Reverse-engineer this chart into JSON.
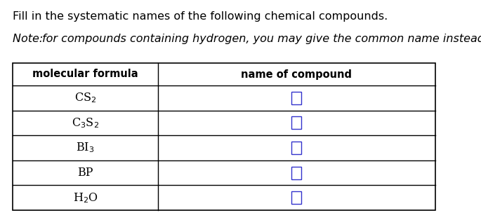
{
  "title_text": "Fill in the systematic names of the following chemical compounds.",
  "note_text_italic": "Note: ",
  "note_text_normal": "for compounds containing hydrogen, you may give the common name instead.",
  "col1_header": "molecular formula",
  "col2_header": "name of compound",
  "formulas": [
    "CS$_2$",
    "C$_3$S$_2$",
    "BI$_3$",
    "BP",
    "H$_2$O"
  ],
  "bg_color": "#ffffff",
  "border_color": "#000000",
  "answer_box_color": "#3333cc",
  "title_fontsize": 11.5,
  "note_fontsize": 11.5,
  "header_fontsize": 10.5,
  "formula_fontsize": 11.5,
  "fig_width": 6.85,
  "fig_height": 3.04,
  "dpi": 100
}
